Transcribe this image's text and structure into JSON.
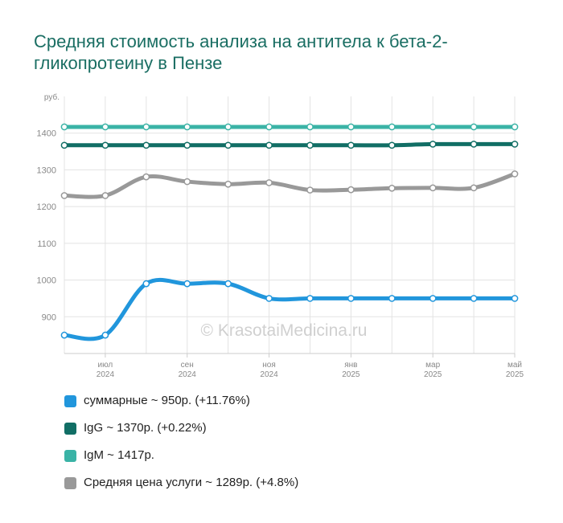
{
  "title": "Средняя стоимость анализа на антитела к бета-2-гликопротеину в Пензе",
  "watermark": "© KrasotaiMedicina.ru",
  "chart_data": {
    "type": "line",
    "title": "Средняя стоимость анализа на антитела к бета-2-гликопротеину в Пензе",
    "y_unit": "руб.",
    "ylim": [
      800,
      1500
    ],
    "y_ticks": [
      900,
      1000,
      1100,
      1200,
      1300,
      1400
    ],
    "x_ticks": [
      {
        "index": 1,
        "month": "июл",
        "year": "2024"
      },
      {
        "index": 3,
        "month": "сен",
        "year": "2024"
      },
      {
        "index": 5,
        "month": "ноя",
        "year": "2024"
      },
      {
        "index": 7,
        "month": "янв",
        "year": "2025"
      },
      {
        "index": 9,
        "month": "мар",
        "year": "2025"
      },
      {
        "index": 11,
        "month": "май",
        "year": "2025"
      }
    ],
    "x": [
      "2024-06",
      "2024-07",
      "2024-08",
      "2024-09",
      "2024-10",
      "2024-11",
      "2024-12",
      "2025-01",
      "2025-02",
      "2025-03",
      "2025-04",
      "2025-05"
    ],
    "grid": true,
    "legend_position": "bottom",
    "series": [
      {
        "name": "суммарные",
        "legend": "суммарные ~ 950р. (+11.76%)",
        "color": "#2196dc",
        "values": [
          850,
          850,
          990,
          990,
          990,
          950,
          950,
          950,
          950,
          950,
          950,
          950
        ]
      },
      {
        "name": "IgG",
        "legend": "IgG ~ 1370р. (+0.22%)",
        "color": "#116e65",
        "values": [
          1367,
          1367,
          1367,
          1367,
          1367,
          1367,
          1367,
          1367,
          1367,
          1370,
          1370,
          1370
        ]
      },
      {
        "name": "IgM",
        "legend": "IgM ~ 1417р.",
        "color": "#3ab3a6",
        "values": [
          1417,
          1417,
          1417,
          1417,
          1417,
          1417,
          1417,
          1417,
          1417,
          1417,
          1417,
          1417
        ]
      },
      {
        "name": "Средняя цена услуги",
        "legend": "Средняя цена услуги ~ 1289р. (+4.8%)",
        "color": "#999999",
        "values": [
          1230,
          1230,
          1281,
          1268,
          1261,
          1265,
          1245,
          1246,
          1250,
          1251,
          1251,
          1289
        ]
      }
    ]
  }
}
